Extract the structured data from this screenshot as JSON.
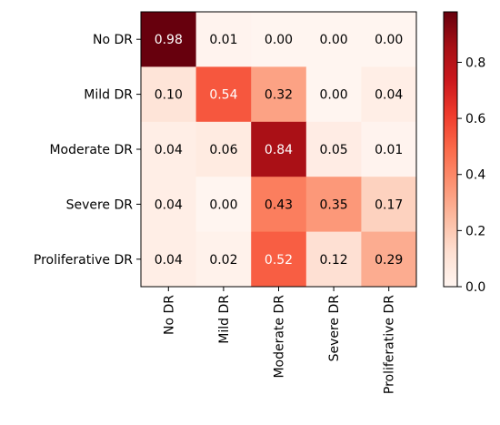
{
  "chart_data": {
    "type": "heatmap",
    "rows": [
      "No DR",
      "Mild DR",
      "Moderate DR",
      "Severe DR",
      "Proliferative DR"
    ],
    "columns": [
      "No DR",
      "Mild DR",
      "Moderate DR",
      "Severe DR",
      "Proliferative DR"
    ],
    "values": [
      [
        0.98,
        0.01,
        0.0,
        0.0,
        0.0
      ],
      [
        0.1,
        0.54,
        0.32,
        0.0,
        0.04
      ],
      [
        0.04,
        0.06,
        0.84,
        0.05,
        0.01
      ],
      [
        0.04,
        0.0,
        0.43,
        0.35,
        0.17
      ],
      [
        0.04,
        0.02,
        0.52,
        0.12,
        0.29
      ]
    ],
    "value_labels": [
      [
        "0.98",
        "0.01",
        "0.00",
        "0.00",
        "0.00"
      ],
      [
        "0.10",
        "0.54",
        "0.32",
        "0.00",
        "0.04"
      ],
      [
        "0.04",
        "0.06",
        "0.84",
        "0.05",
        "0.01"
      ],
      [
        "0.04",
        "0.00",
        "0.43",
        "0.35",
        "0.17"
      ],
      [
        "0.04",
        "0.02",
        "0.52",
        "0.12",
        "0.29"
      ]
    ],
    "colormap": "Reds",
    "colorbar": {
      "range": [
        0.0,
        0.98
      ],
      "ticks": [
        0.0,
        0.2,
        0.4,
        0.6,
        0.8
      ],
      "tick_labels": [
        "0.0",
        "0.2",
        "0.4",
        "0.6",
        "0.8"
      ]
    },
    "title": "",
    "xlabel": "",
    "ylabel": "",
    "grid": false
  }
}
